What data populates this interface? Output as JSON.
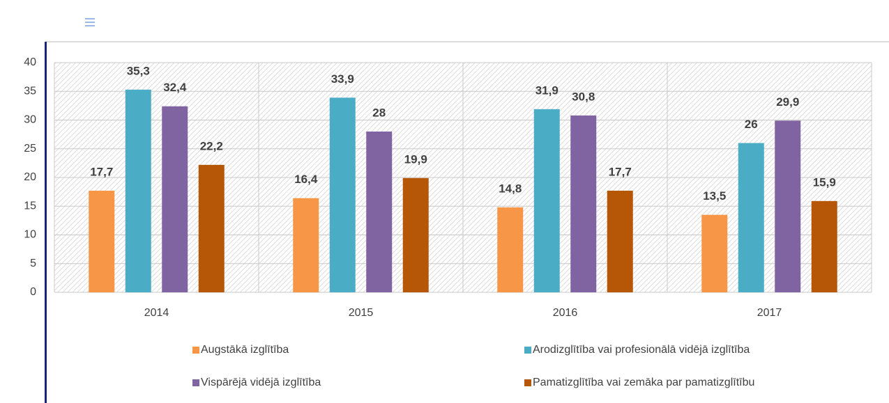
{
  "chart_data": {
    "type": "bar",
    "categories": [
      "2014",
      "2015",
      "2016",
      "2017"
    ],
    "series": [
      {
        "name": "Augstākā izglītība",
        "color": "#f79646",
        "values": [
          17.7,
          16.4,
          14.8,
          13.5
        ],
        "value_labels": [
          "17,7",
          "16,4",
          "14,8",
          "13,5"
        ]
      },
      {
        "name": "Arodizglītība vai profesionālā vidējā izglītība",
        "color": "#4bacc6",
        "values": [
          35.3,
          33.9,
          31.9,
          26
        ],
        "value_labels": [
          "35,3",
          "33,9",
          "31,9",
          "26"
        ]
      },
      {
        "name": "Vispārējā vidējā izglītība",
        "color": "#8064a2",
        "values": [
          32.4,
          28,
          30.8,
          29.9
        ],
        "value_labels": [
          "32,4",
          "28",
          "30,8",
          "29,9"
        ]
      },
      {
        "name": "Pamatizglītība vai zemāka par pamatizglītību",
        "color": "#b65708",
        "values": [
          22.2,
          19.9,
          17.7,
          15.9
        ],
        "value_labels": [
          "22,2",
          "19,9",
          "17,7",
          "15,9"
        ]
      }
    ],
    "ylim": [
      0,
      40
    ],
    "yticks": [
      0,
      5,
      10,
      15,
      20,
      25,
      30,
      35,
      40
    ],
    "grid": true,
    "legend": "bottom"
  }
}
